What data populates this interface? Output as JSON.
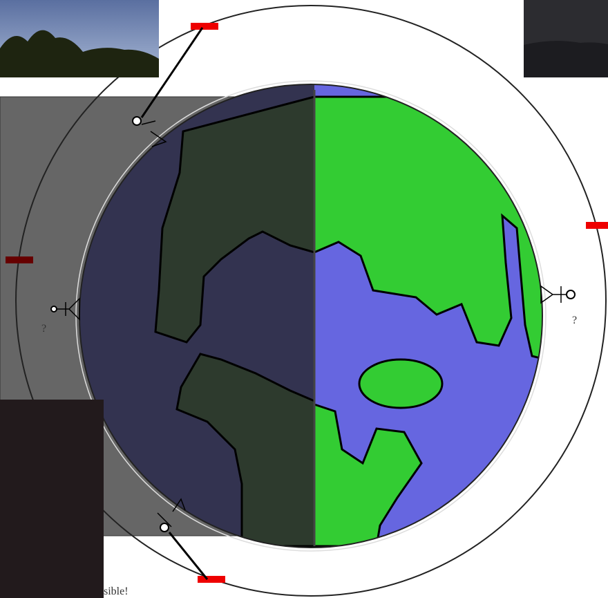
{
  "labels": {
    "left_question": "?",
    "right_question": "?",
    "caption": "sible!"
  }
}
